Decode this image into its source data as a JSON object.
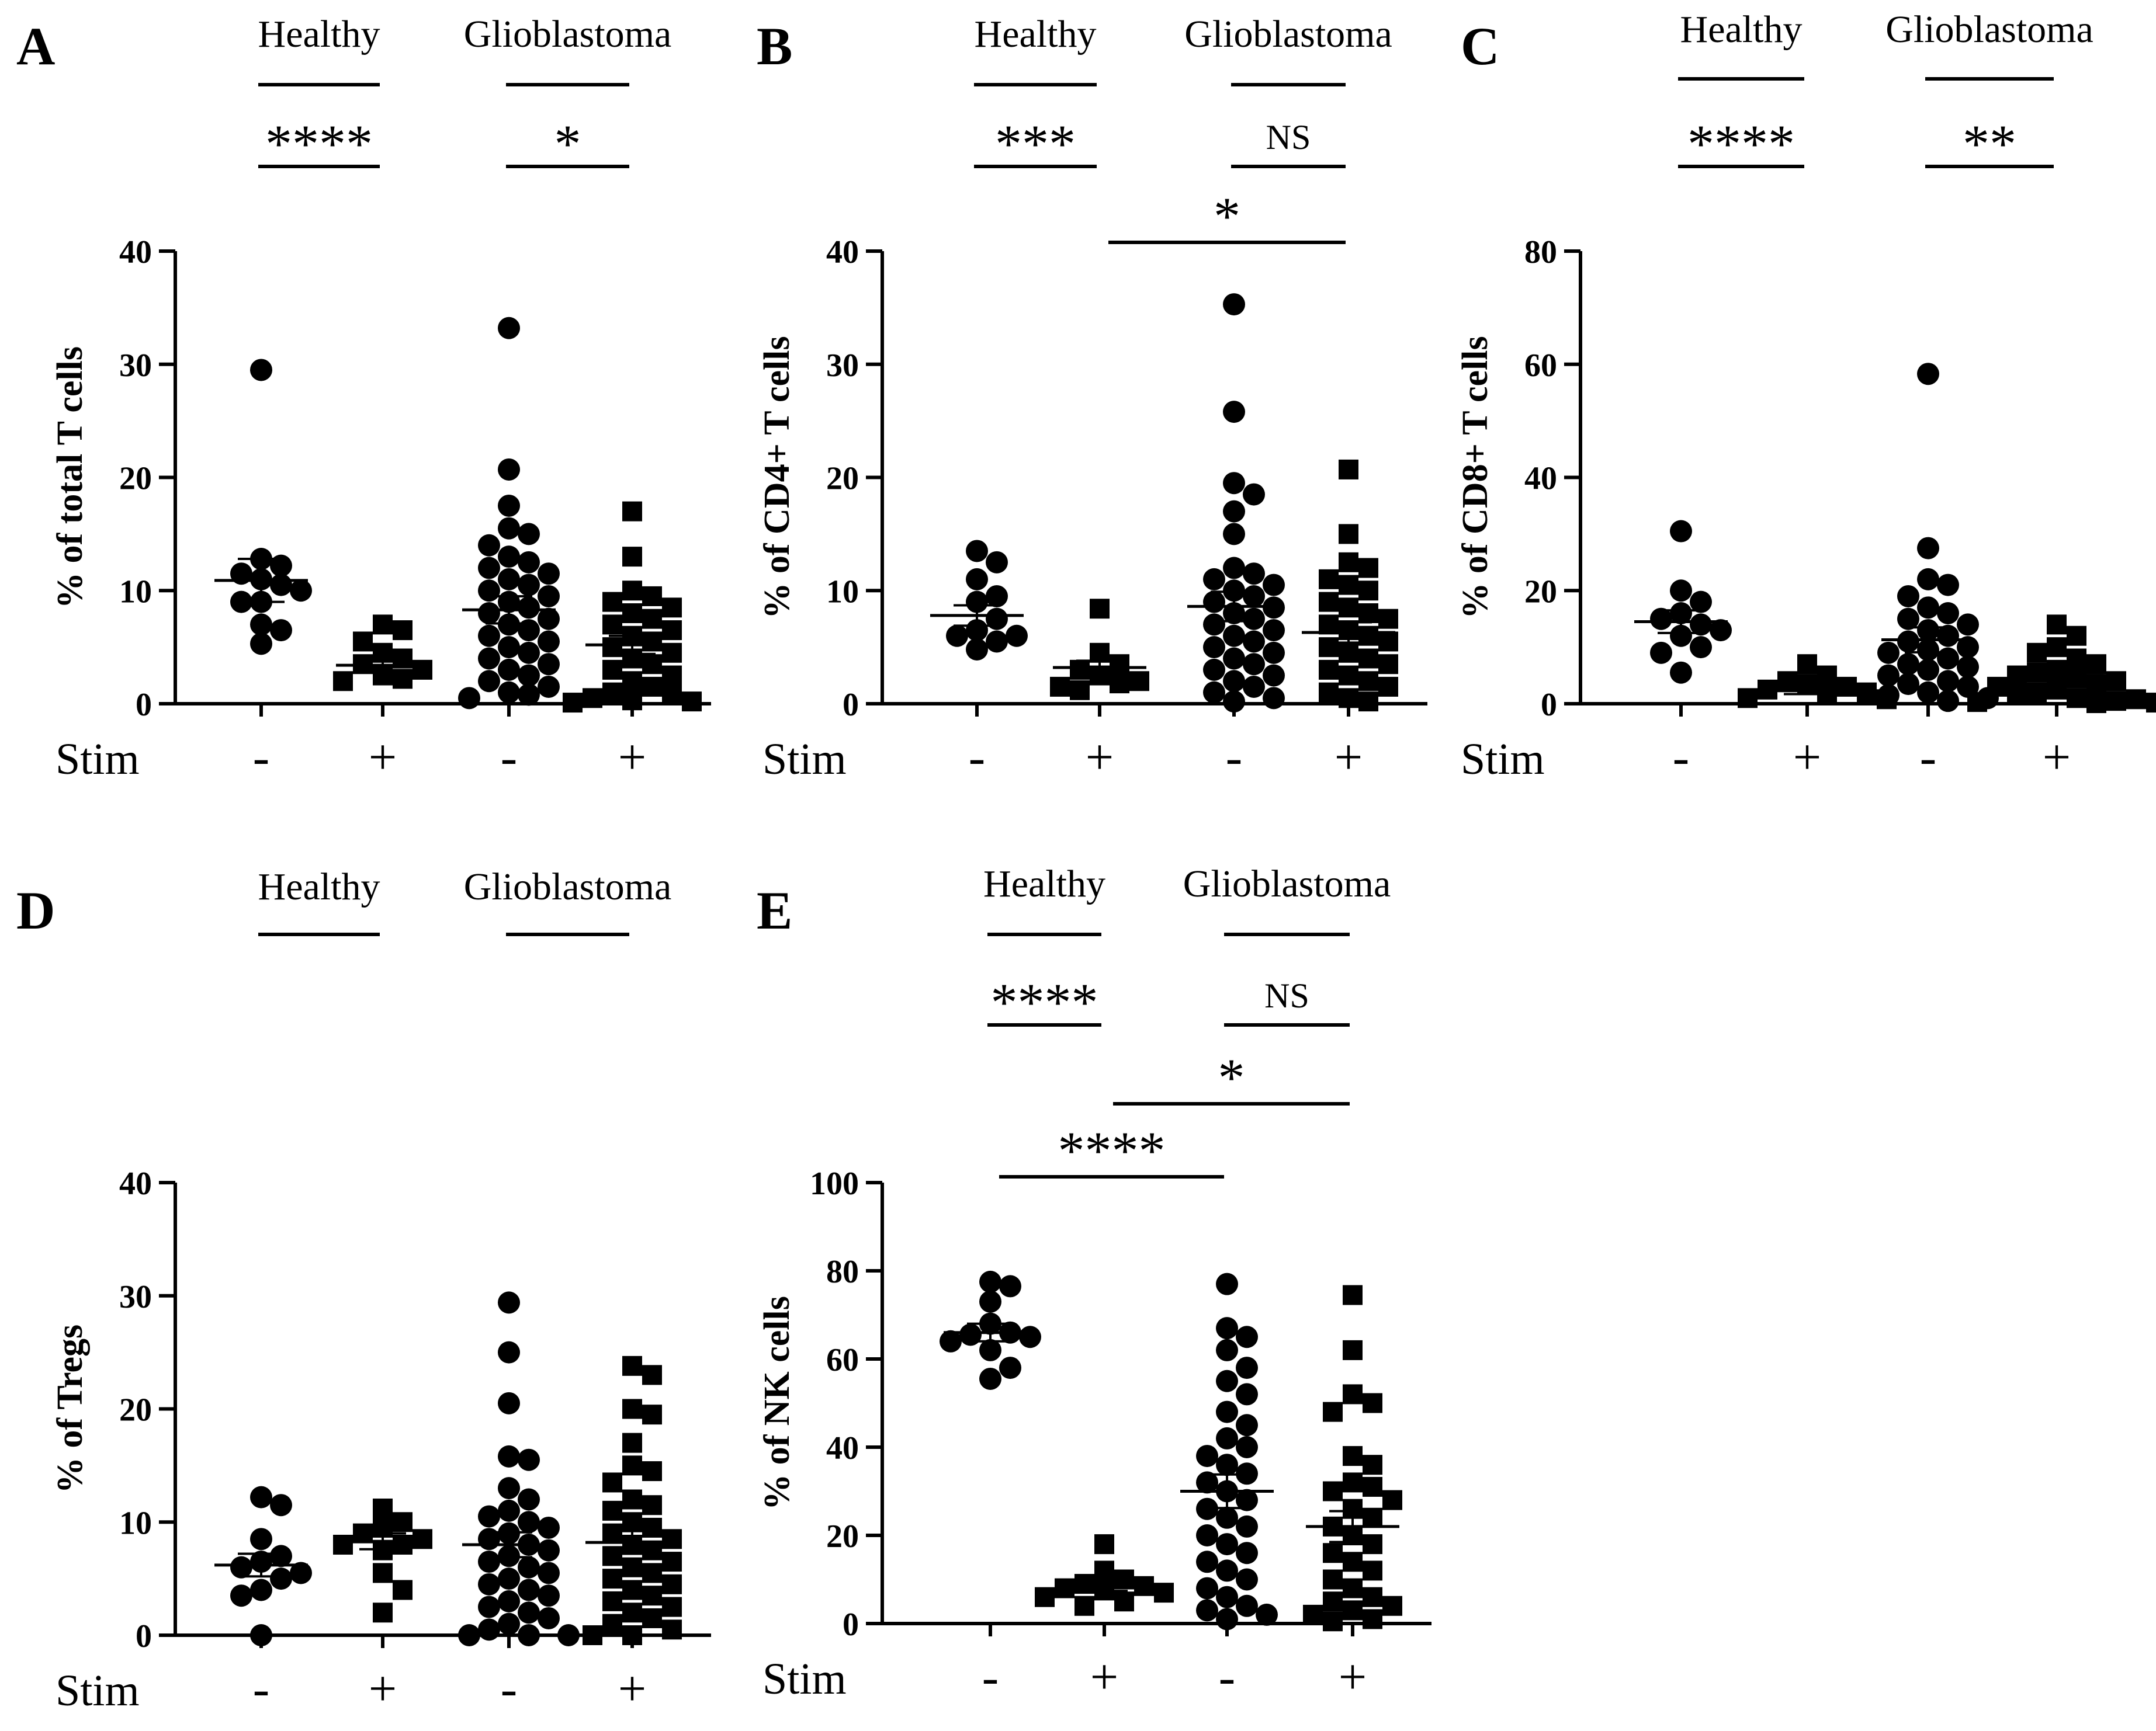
{
  "figure": {
    "group_labels": [
      "Healthy",
      "Glioblastoma"
    ],
    "stim_label": "Stim",
    "condition_labels": [
      "-",
      "+",
      "-",
      "+"
    ],
    "marker_color": "#000000"
  },
  "chart_data": [
    {
      "type": "scatter",
      "panel": "A",
      "ylabel": "% of total T cells",
      "ylim": [
        0,
        40
      ],
      "yticks": [
        "0",
        "10",
        "20",
        "30",
        "40"
      ],
      "sig_within": [
        "****",
        "*"
      ],
      "sig_across": [],
      "markers": [
        "circle",
        "square",
        "circle",
        "square"
      ],
      "series": [
        {
          "values": [
            29.5,
            12.8,
            12.2,
            11.5,
            11.0,
            10.5,
            10.0,
            9.0,
            9.0,
            7.0,
            6.5,
            5.3
          ]
        },
        {
          "values": [
            7.0,
            6.5,
            5.5,
            4.5,
            4.0,
            3.5,
            3.0,
            2.5,
            2.2,
            2.0
          ]
        },
        {
          "values": [
            33.2,
            20.7,
            17.5,
            15.5,
            15.0,
            14.0,
            13.0,
            12.5,
            12.0,
            11.5,
            11.0,
            10.5,
            10.0,
            9.5,
            9.0,
            8.5,
            8.0,
            7.5,
            7.0,
            6.5,
            6.0,
            5.5,
            5.0,
            4.5,
            4.0,
            3.5,
            3.0,
            2.5,
            2.0,
            1.5,
            1.0,
            0.8,
            0.5
          ]
        },
        {
          "values": [
            17.0,
            13.0,
            10.0,
            9.5,
            9.0,
            8.5,
            8.0,
            7.5,
            7.0,
            6.5,
            6.0,
            5.5,
            5.0,
            4.5,
            4.0,
            3.5,
            3.0,
            2.5,
            2.0,
            1.5,
            1.0,
            0.8,
            0.5,
            0.3,
            0.2,
            0.1
          ]
        }
      ],
      "means": [
        10.9,
        3.4,
        8.3,
        5.2
      ],
      "sems": [
        1.9,
        0.6,
        1.2,
        0.8
      ]
    },
    {
      "type": "scatter",
      "panel": "B",
      "ylabel": "% of CD4+ T cells",
      "ylim": [
        0,
        40
      ],
      "yticks": [
        "0",
        "10",
        "20",
        "30",
        "40"
      ],
      "sig_within": [
        "***",
        "NS"
      ],
      "sig_across": [
        {
          "from": 1,
          "to": 3,
          "label": "*"
        }
      ],
      "markers": [
        "circle",
        "square",
        "circle",
        "square"
      ],
      "series": [
        {
          "values": [
            13.5,
            12.5,
            11.0,
            9.5,
            9.0,
            7.5,
            6.5,
            6.0,
            6.0,
            5.5,
            4.8
          ]
        },
        {
          "values": [
            8.4,
            4.5,
            3.5,
            3.0,
            2.5,
            2.0,
            1.8,
            1.5,
            1.2
          ]
        },
        {
          "values": [
            35.3,
            25.8,
            19.5,
            18.5,
            17.0,
            15.0,
            12.0,
            11.5,
            11.0,
            10.5,
            10.0,
            9.5,
            9.0,
            8.5,
            8.0,
            7.5,
            7.0,
            6.5,
            6.0,
            5.5,
            5.0,
            4.5,
            4.0,
            3.5,
            3.0,
            2.5,
            2.0,
            1.5,
            1.0,
            0.5,
            0.2
          ]
        },
        {
          "values": [
            20.7,
            15.0,
            12.5,
            12.0,
            11.0,
            10.5,
            10.0,
            9.0,
            8.5,
            8.0,
            7.5,
            7.0,
            6.5,
            6.0,
            5.5,
            5.0,
            4.5,
            4.0,
            3.5,
            3.0,
            2.5,
            2.0,
            1.5,
            1.0,
            0.5,
            0.2
          ]
        }
      ],
      "means": [
        7.8,
        3.2,
        8.6,
        6.3
      ],
      "sems": [
        0.9,
        0.6,
        1.3,
        0.9
      ]
    },
    {
      "type": "scatter",
      "panel": "C",
      "ylabel": "% of CD8+ T cells",
      "ylim": [
        0,
        80
      ],
      "yticks": [
        "0",
        "20",
        "40",
        "60",
        "80"
      ],
      "sig_within": [
        "****",
        "**"
      ],
      "sig_across": [],
      "markers": [
        "circle",
        "square",
        "circle",
        "square"
      ],
      "series": [
        {
          "values": [
            30.5,
            20.0,
            18.0,
            16.0,
            15.0,
            14.0,
            13.0,
            12.0,
            10.0,
            9.0,
            5.5
          ]
        },
        {
          "values": [
            7.0,
            5.0,
            4.0,
            3.5,
            3.0,
            2.5,
            2.0,
            1.5,
            1.0,
            0.8
          ]
        },
        {
          "values": [
            58.3,
            27.5,
            22.0,
            21.0,
            19.0,
            17.0,
            16.0,
            15.0,
            14.0,
            13.0,
            12.0,
            11.0,
            10.0,
            9.5,
            9.0,
            8.0,
            7.0,
            6.5,
            6.0,
            5.0,
            4.0,
            3.5,
            3.0,
            2.0,
            1.5,
            1.0,
            0.5
          ]
        },
        {
          "values": [
            14.0,
            12.0,
            10.0,
            9.0,
            8.0,
            7.0,
            6.0,
            5.5,
            5.0,
            4.5,
            4.0,
            3.5,
            3.0,
            2.5,
            2.0,
            1.5,
            1.0,
            0.8,
            0.5,
            0.3,
            0.2,
            0.1
          ]
        }
      ],
      "means": [
        14.5,
        2.3,
        11.3,
        5.0
      ],
      "sems": [
        2.0,
        0.6,
        2.2,
        0.9
      ]
    },
    {
      "type": "scatter",
      "panel": "D",
      "ylabel": "% of Tregs",
      "ylim": [
        0,
        40
      ],
      "yticks": [
        "0",
        "10",
        "20",
        "30",
        "40"
      ],
      "sig_within": [],
      "sig_across": [],
      "markers": [
        "circle",
        "square",
        "circle",
        "square"
      ],
      "series": [
        {
          "values": [
            12.2,
            11.5,
            8.5,
            7.0,
            6.5,
            6.0,
            5.5,
            5.0,
            4.0,
            3.5,
            0.0
          ]
        },
        {
          "values": [
            11.2,
            10.0,
            9.5,
            9.0,
            8.5,
            8.0,
            8.0,
            7.5,
            5.5,
            4.0,
            2.0
          ]
        },
        {
          "values": [
            29.4,
            25.0,
            20.5,
            15.8,
            15.5,
            13.0,
            12.0,
            11.0,
            10.5,
            10.0,
            9.5,
            9.0,
            8.5,
            8.0,
            7.5,
            7.0,
            6.5,
            6.0,
            5.5,
            5.0,
            4.5,
            4.0,
            3.5,
            3.0,
            2.5,
            2.0,
            1.5,
            1.0,
            0.5,
            0.0,
            0.0,
            0.0
          ]
        },
        {
          "values": [
            23.8,
            23.0,
            20.0,
            19.5,
            17.0,
            15.0,
            14.5,
            13.5,
            12.0,
            11.5,
            11.0,
            10.0,
            9.5,
            9.0,
            8.5,
            8.0,
            7.5,
            7.0,
            6.5,
            6.0,
            5.5,
            5.0,
            4.5,
            4.0,
            3.5,
            3.0,
            2.5,
            2.0,
            1.5,
            1.0,
            0.5,
            0.0,
            0.0
          ]
        }
      ],
      "means": [
        6.2,
        8.3,
        8.0,
        8.2
      ],
      "sems": [
        1.0,
        0.7,
        1.1,
        1.0
      ]
    },
    {
      "type": "scatter",
      "panel": "E",
      "ylabel": "% of NK cells",
      "ylim": [
        0,
        100
      ],
      "yticks": [
        "0",
        "20",
        "40",
        "60",
        "80",
        "100"
      ],
      "sig_within": [
        "****",
        "NS"
      ],
      "sig_across": [
        {
          "from": 1,
          "to": 3,
          "label": "*"
        },
        {
          "from": 0,
          "to": 2,
          "label": "****"
        }
      ],
      "markers": [
        "circle",
        "square",
        "circle",
        "square"
      ],
      "series": [
        {
          "values": [
            77.5,
            76.5,
            73.0,
            68.0,
            66.0,
            65.5,
            65.0,
            64.0,
            62.0,
            58.0,
            55.5
          ]
        },
        {
          "values": [
            18.0,
            12.0,
            10.0,
            9.0,
            8.5,
            8.0,
            7.5,
            7.0,
            6.0,
            5.0,
            4.0
          ]
        },
        {
          "values": [
            77.0,
            67.0,
            65.0,
            62.0,
            58.0,
            55.0,
            52.0,
            48.0,
            45.0,
            42.0,
            40.0,
            38.0,
            36.0,
            34.0,
            32.0,
            30.0,
            28.0,
            26.0,
            24.0,
            22.0,
            20.0,
            18.0,
            16.0,
            14.0,
            12.0,
            10.0,
            8.0,
            6.0,
            4.0,
            3.0,
            2.0,
            1.0
          ]
        },
        {
          "values": [
            74.5,
            62.0,
            52.0,
            50.0,
            48.0,
            38.0,
            36.0,
            32.0,
            31.0,
            30.0,
            28.0,
            26.0,
            24.0,
            22.0,
            20.0,
            18.0,
            16.0,
            14.0,
            12.0,
            10.0,
            8.0,
            6.0,
            5.0,
            4.0,
            3.0,
            2.0,
            1.0,
            0.5
          ]
        }
      ],
      "means": [
        66.0,
        8.6,
        30.0,
        22.0
      ],
      "sems": [
        2.0,
        1.2,
        3.8,
        3.5
      ]
    }
  ]
}
